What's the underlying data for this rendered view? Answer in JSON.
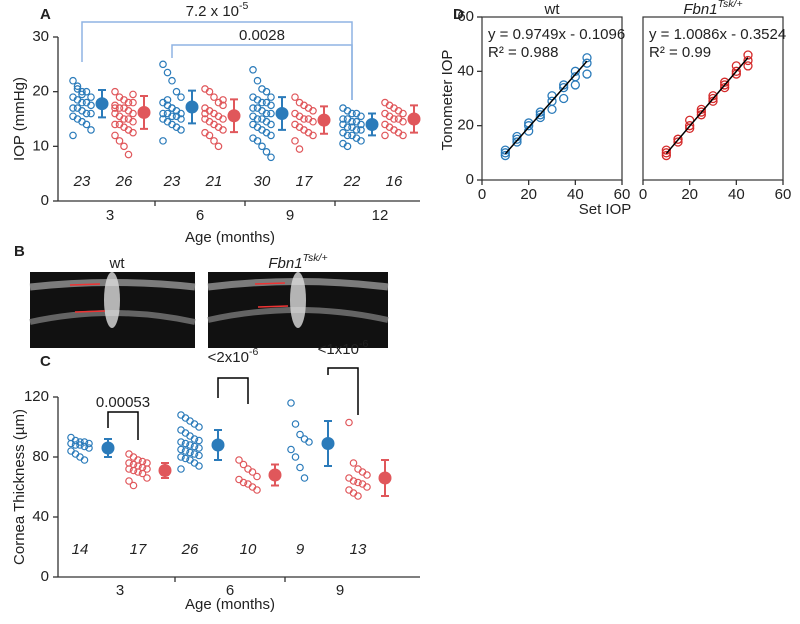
{
  "image_panel": {
    "panel": "B",
    "labels": [
      {
        "text": "wt"
      },
      {
        "text": "Fbn1",
        "sup": "Tsk/+"
      }
    ]
  },
  "chart_data": [
    {
      "type": "dot",
      "panel": "A",
      "ylabel": "IOP (mmHg)",
      "xlabel": "Age (months)",
      "categories": [
        "3",
        "6",
        "9",
        "12"
      ],
      "ylim": [
        0,
        30
      ],
      "yticks": [
        0,
        10,
        20,
        30
      ],
      "series": [
        {
          "color": "#2b7bba",
          "points": [
            [
              22,
              21,
              20,
              20,
              19,
              19,
              18.5,
              18,
              18,
              17.5,
              17,
              17,
              16.5,
              16,
              16,
              15.5,
              15,
              14.5,
              14,
              13,
              12,
              20.5,
              19.5
            ],
            [
              25,
              23.5,
              22,
              20,
              19,
              18,
              17.5,
              17,
              16.5,
              16,
              16,
              16,
              15.5,
              15.5,
              15,
              15,
              14.5,
              14,
              13.5,
              13,
              11,
              18.5,
              17
            ],
            [
              24,
              22,
              20.5,
              20,
              19,
              19,
              18.5,
              18,
              18,
              17.5,
              17,
              17,
              16.5,
              16,
              16,
              15.5,
              15,
              15,
              14.5,
              14,
              14,
              13.5,
              13,
              12.5,
              12,
              11.5,
              11,
              10,
              9,
              8
            ],
            [
              17,
              16.5,
              16,
              16,
              15.5,
              15,
              15,
              14.5,
              14.5,
              14,
              14,
              13.5,
              13.5,
              13,
              13,
              12.5,
              12,
              12,
              11.5,
              11,
              10.5,
              10
            ]
          ],
          "means": [
            17.8,
            17.2,
            16,
            14
          ],
          "errors": [
            2.5,
            3,
            3,
            2
          ],
          "n": [
            23,
            23,
            30,
            22
          ]
        },
        {
          "color": "#e0575b",
          "points": [
            [
              20,
              19,
              18.5,
              18,
              18,
              17.5,
              17,
              17,
              16.5,
              16,
              16,
              15.5,
              15,
              15,
              14.5,
              14,
              14,
              13.5,
              13,
              12.5,
              12,
              11,
              10,
              8.5,
              19.5,
              17
            ],
            [
              20.5,
              20,
              19,
              18,
              17.5,
              17,
              16.5,
              16,
              15.5,
              15,
              15,
              14.5,
              14,
              13.5,
              13,
              12.5,
              12,
              11,
              10,
              18.5,
              16
            ],
            [
              19,
              18,
              17.5,
              17,
              16.5,
              16,
              15.5,
              15,
              15,
              14.5,
              14,
              13.5,
              13,
              12.5,
              12,
              11,
              9.5
            ],
            [
              18,
              17.5,
              17,
              16.5,
              16,
              16,
              15.5,
              15,
              15,
              14.5,
              14,
              13.5,
              13,
              12.5,
              12,
              12
            ]
          ],
          "means": [
            16.2,
            15.6,
            14.8,
            15
          ],
          "errors": [
            3,
            3,
            2.5,
            2.5
          ],
          "n": [
            26,
            21,
            17,
            16
          ]
        }
      ],
      "annotations": [
        {
          "text": "7.2 x 10",
          "sup": "-5"
        },
        {
          "text": "0.0028"
        }
      ],
      "annotation_color": "#8fb4e3"
    },
    {
      "type": "dot",
      "panel": "C",
      "ylabel": "Cornea Thickness (µm)",
      "xlabel": "Age (months)",
      "categories": [
        "3",
        "6",
        "9"
      ],
      "ylim": [
        0,
        120
      ],
      "yticks": [
        0,
        40,
        80,
        120
      ],
      "series": [
        {
          "color": "#2b7bba",
          "points": [
            [
              93,
              91,
              90,
              90,
              89,
              89,
              88,
              88,
              87,
              86,
              84,
              82,
              80,
              78
            ],
            [
              108,
              106,
              104,
              102,
              100,
              98,
              96,
              94,
              92,
              91,
              90,
              89,
              88,
              87,
              86,
              85,
              84,
              83,
              82,
              81,
              80,
              79,
              78,
              76,
              74,
              72
            ],
            [
              116,
              102,
              95,
              92,
              90,
              85,
              80,
              73,
              66
            ]
          ],
          "means": [
            86,
            88,
            89
          ],
          "errors": [
            6,
            10,
            15
          ],
          "n": [
            14,
            26,
            9
          ]
        },
        {
          "color": "#e0575b",
          "points": [
            [
              82,
              80,
              78,
              77,
              76,
              76,
              75,
              74,
              73,
              72,
              72,
              71,
              70,
              69,
              66,
              64,
              61
            ],
            [
              78,
              75,
              72,
              70,
              67,
              65,
              63,
              62,
              60,
              58
            ],
            [
              103,
              76,
              72,
              70,
              68,
              66,
              64,
              63,
              62,
              60,
              58,
              56,
              54
            ]
          ],
          "means": [
            71,
            68,
            66
          ],
          "errors": [
            5,
            7,
            12
          ],
          "n": [
            17,
            10,
            13
          ]
        }
      ],
      "annotations": [
        {
          "text": "0.00053"
        },
        {
          "text": "<2x10",
          "sup": "-6"
        },
        {
          "text": "<1x10",
          "sup": "-6"
        }
      ],
      "annotation_color": "#000000"
    },
    {
      "type": "scatter",
      "panel": "D",
      "title": {
        "text": "wt"
      },
      "ylabel": "Tonometer IOP",
      "xlabel": "Set IOP",
      "equation": "y = 0.9749x - 0.1096",
      "r2": "R² = 0.988",
      "fit": {
        "slope": 0.9749,
        "intercept": -0.1096
      },
      "color": "#2b7bba",
      "x": [
        10,
        10,
        10,
        15,
        15,
        15,
        20,
        20,
        20,
        25,
        25,
        25,
        30,
        30,
        30,
        35,
        35,
        35,
        40,
        40,
        40,
        45,
        45,
        45
      ],
      "y": [
        9,
        10,
        11,
        14,
        15,
        16,
        18,
        20,
        21,
        23,
        24,
        25,
        26,
        29,
        31,
        30,
        34,
        35,
        35,
        38,
        40,
        39,
        43,
        45
      ],
      "xlim": [
        0,
        60
      ],
      "ylim": [
        0,
        60
      ],
      "xticks": [
        0,
        20,
        40,
        60
      ],
      "yticks": [
        0,
        20,
        40,
        60
      ]
    },
    {
      "type": "scatter",
      "title": {
        "text": "Fbn1",
        "sup": "Tsk/+"
      },
      "equation": "y = 1.0086x - 0.3524",
      "r2": "R² = 0.99",
      "fit": {
        "slope": 1.0086,
        "intercept": -0.3524
      },
      "color": "#d42a2a",
      "x": [
        10,
        10,
        10,
        15,
        15,
        15,
        20,
        20,
        20,
        25,
        25,
        25,
        30,
        30,
        30,
        35,
        35,
        35,
        40,
        40,
        40,
        45,
        45,
        45
      ],
      "y": [
        9,
        10,
        11,
        14,
        15,
        15,
        19,
        20,
        22,
        24,
        25,
        26,
        29,
        30,
        31,
        34,
        35,
        36,
        39,
        40,
        42,
        42,
        44,
        46
      ],
      "xlim": [
        0,
        60
      ],
      "ylim": [
        0,
        60
      ],
      "xticks": [
        0,
        20,
        40,
        60
      ]
    }
  ]
}
